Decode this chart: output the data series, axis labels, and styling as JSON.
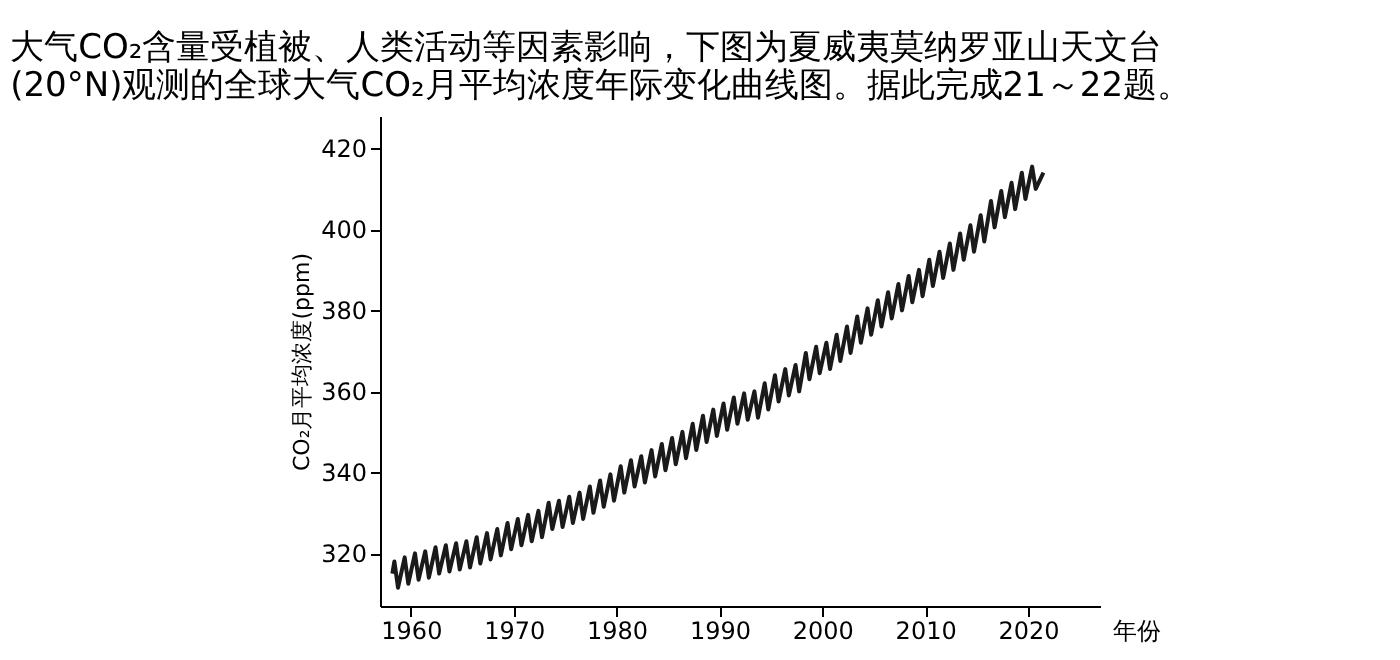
{
  "chart_data": {
    "type": "line",
    "title": "大气CO₂含量受植被、人类活动等因素影响，下图为夏威夷莫纳罗亚山天文台\n(20°N)观测的全球大气CO₂月平均浓度年际变化曲线图。据此完成21～22题。",
    "xlabel": "年份",
    "ylabel": "CO₂月平均浓度(ppm)",
    "xlim": [
      1957,
      2027
    ],
    "xticks": [
      1960,
      1970,
      1980,
      1990,
      2000,
      2010,
      2020
    ],
    "ylim": [
      307,
      428
    ],
    "yticks": [
      320,
      340,
      360,
      380,
      400,
      420
    ],
    "grid": false,
    "legend": false,
    "marker": "none",
    "line_style": "solid",
    "series": [
      {
        "color": "#1a1a1a",
        "x": [
          1958.2,
          1958.4,
          1958.75,
          1959.4,
          1959.75,
          1960.4,
          1960.75,
          1961.4,
          1961.75,
          1962.4,
          1962.75,
          1963.4,
          1963.75,
          1964.4,
          1964.75,
          1965.4,
          1965.75,
          1966.4,
          1966.75,
          1967.4,
          1967.75,
          1968.4,
          1968.75,
          1969.4,
          1969.75,
          1970.4,
          1970.75,
          1971.4,
          1971.75,
          1972.4,
          1972.75,
          1973.4,
          1973.75,
          1974.4,
          1974.75,
          1975.4,
          1975.75,
          1976.4,
          1976.75,
          1977.4,
          1977.75,
          1978.4,
          1978.75,
          1979.4,
          1979.75,
          1980.4,
          1980.75,
          1981.4,
          1981.75,
          1982.4,
          1982.75,
          1983.4,
          1983.75,
          1984.4,
          1984.75,
          1985.4,
          1985.75,
          1986.4,
          1986.75,
          1987.4,
          1987.75,
          1988.4,
          1988.75,
          1989.4,
          1989.75,
          1990.4,
          1990.75,
          1991.4,
          1991.75,
          1992.4,
          1992.75,
          1993.4,
          1993.75,
          1994.4,
          1994.75,
          1995.4,
          1995.75,
          1996.4,
          1996.75,
          1997.4,
          1997.75,
          1998.4,
          1998.75,
          1999.4,
          1999.75,
          2000.4,
          2000.75,
          2001.4,
          2001.75,
          2002.4,
          2002.75,
          2003.4,
          2003.75,
          2004.4,
          2004.75,
          2005.4,
          2005.75,
          2006.4,
          2006.75,
          2007.4,
          2007.75,
          2008.4,
          2008.75,
          2009.4,
          2009.75,
          2010.4,
          2010.75,
          2011.4,
          2011.75,
          2012.4,
          2012.75,
          2013.4,
          2013.75,
          2014.4,
          2014.75,
          2015.4,
          2015.75,
          2016.4,
          2016.75,
          2017.4,
          2017.75,
          2018.4,
          2018.75,
          2019.4,
          2019.75,
          2020.4,
          2020.75,
          2021.5
        ],
        "values": [
          315,
          318,
          311.5,
          319,
          312.5,
          320,
          313.5,
          320.5,
          314,
          321.5,
          315,
          322,
          315.5,
          322.5,
          316,
          323,
          316.5,
          324,
          317.5,
          325,
          318.5,
          326,
          319.5,
          327.5,
          321,
          328.5,
          322,
          329.5,
          323,
          330.5,
          324,
          332.5,
          326,
          333,
          326.5,
          334,
          327.5,
          335,
          328.5,
          336.5,
          330,
          338,
          331.5,
          339.5,
          333,
          341.5,
          335,
          343,
          336.5,
          344,
          337.5,
          345.5,
          339,
          347,
          340.5,
          348.5,
          342,
          350,
          343.5,
          352,
          345.5,
          354,
          347.5,
          355.5,
          349,
          357,
          350.5,
          358.5,
          352,
          359.5,
          353,
          360,
          353.5,
          362,
          355.5,
          364,
          357.5,
          365.5,
          359,
          366.5,
          360,
          369.5,
          363,
          371,
          364.5,
          372,
          365.5,
          374,
          367.5,
          376,
          369.5,
          378.5,
          372,
          380.5,
          374,
          382.5,
          376,
          384.5,
          378,
          386.5,
          380,
          388.5,
          382,
          390,
          383.5,
          392.5,
          386,
          394.5,
          388,
          396.5,
          390,
          399,
          392.5,
          401,
          394.5,
          403.5,
          397,
          407,
          400.5,
          409.5,
          403,
          411.5,
          405,
          414,
          407.5,
          415.5,
          410,
          414
        ]
      }
    ]
  }
}
